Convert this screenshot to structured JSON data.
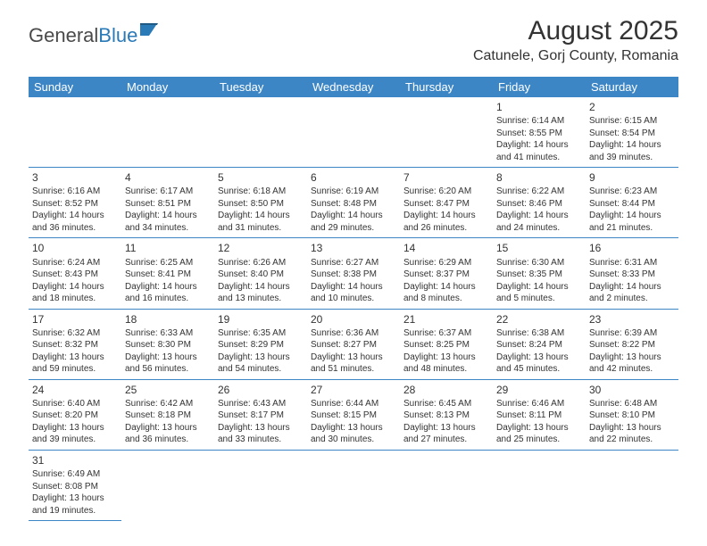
{
  "logo": {
    "part1": "General",
    "part2": "Blue"
  },
  "title": "August 2025",
  "location": "Catunele, Gorj County, Romania",
  "colors": {
    "header_bg": "#3d86c6",
    "header_fg": "#ffffff",
    "border": "#3d86c6",
    "text": "#333333",
    "logo_gray": "#4a4a4a",
    "logo_blue": "#2a7ab8",
    "page_bg": "#ffffff"
  },
  "dayHeaders": [
    "Sunday",
    "Monday",
    "Tuesday",
    "Wednesday",
    "Thursday",
    "Friday",
    "Saturday"
  ],
  "startOffset": 5,
  "daysInMonth": 31,
  "days": [
    {
      "n": 1,
      "sunrise": "6:14 AM",
      "sunset": "8:55 PM",
      "dl": "14 hours and 41 minutes."
    },
    {
      "n": 2,
      "sunrise": "6:15 AM",
      "sunset": "8:54 PM",
      "dl": "14 hours and 39 minutes."
    },
    {
      "n": 3,
      "sunrise": "6:16 AM",
      "sunset": "8:52 PM",
      "dl": "14 hours and 36 minutes."
    },
    {
      "n": 4,
      "sunrise": "6:17 AM",
      "sunset": "8:51 PM",
      "dl": "14 hours and 34 minutes."
    },
    {
      "n": 5,
      "sunrise": "6:18 AM",
      "sunset": "8:50 PM",
      "dl": "14 hours and 31 minutes."
    },
    {
      "n": 6,
      "sunrise": "6:19 AM",
      "sunset": "8:48 PM",
      "dl": "14 hours and 29 minutes."
    },
    {
      "n": 7,
      "sunrise": "6:20 AM",
      "sunset": "8:47 PM",
      "dl": "14 hours and 26 minutes."
    },
    {
      "n": 8,
      "sunrise": "6:22 AM",
      "sunset": "8:46 PM",
      "dl": "14 hours and 24 minutes."
    },
    {
      "n": 9,
      "sunrise": "6:23 AM",
      "sunset": "8:44 PM",
      "dl": "14 hours and 21 minutes."
    },
    {
      "n": 10,
      "sunrise": "6:24 AM",
      "sunset": "8:43 PM",
      "dl": "14 hours and 18 minutes."
    },
    {
      "n": 11,
      "sunrise": "6:25 AM",
      "sunset": "8:41 PM",
      "dl": "14 hours and 16 minutes."
    },
    {
      "n": 12,
      "sunrise": "6:26 AM",
      "sunset": "8:40 PM",
      "dl": "14 hours and 13 minutes."
    },
    {
      "n": 13,
      "sunrise": "6:27 AM",
      "sunset": "8:38 PM",
      "dl": "14 hours and 10 minutes."
    },
    {
      "n": 14,
      "sunrise": "6:29 AM",
      "sunset": "8:37 PM",
      "dl": "14 hours and 8 minutes."
    },
    {
      "n": 15,
      "sunrise": "6:30 AM",
      "sunset": "8:35 PM",
      "dl": "14 hours and 5 minutes."
    },
    {
      "n": 16,
      "sunrise": "6:31 AM",
      "sunset": "8:33 PM",
      "dl": "14 hours and 2 minutes."
    },
    {
      "n": 17,
      "sunrise": "6:32 AM",
      "sunset": "8:32 PM",
      "dl": "13 hours and 59 minutes."
    },
    {
      "n": 18,
      "sunrise": "6:33 AM",
      "sunset": "8:30 PM",
      "dl": "13 hours and 56 minutes."
    },
    {
      "n": 19,
      "sunrise": "6:35 AM",
      "sunset": "8:29 PM",
      "dl": "13 hours and 54 minutes."
    },
    {
      "n": 20,
      "sunrise": "6:36 AM",
      "sunset": "8:27 PM",
      "dl": "13 hours and 51 minutes."
    },
    {
      "n": 21,
      "sunrise": "6:37 AM",
      "sunset": "8:25 PM",
      "dl": "13 hours and 48 minutes."
    },
    {
      "n": 22,
      "sunrise": "6:38 AM",
      "sunset": "8:24 PM",
      "dl": "13 hours and 45 minutes."
    },
    {
      "n": 23,
      "sunrise": "6:39 AM",
      "sunset": "8:22 PM",
      "dl": "13 hours and 42 minutes."
    },
    {
      "n": 24,
      "sunrise": "6:40 AM",
      "sunset": "8:20 PM",
      "dl": "13 hours and 39 minutes."
    },
    {
      "n": 25,
      "sunrise": "6:42 AM",
      "sunset": "8:18 PM",
      "dl": "13 hours and 36 minutes."
    },
    {
      "n": 26,
      "sunrise": "6:43 AM",
      "sunset": "8:17 PM",
      "dl": "13 hours and 33 minutes."
    },
    {
      "n": 27,
      "sunrise": "6:44 AM",
      "sunset": "8:15 PM",
      "dl": "13 hours and 30 minutes."
    },
    {
      "n": 28,
      "sunrise": "6:45 AM",
      "sunset": "8:13 PM",
      "dl": "13 hours and 27 minutes."
    },
    {
      "n": 29,
      "sunrise": "6:46 AM",
      "sunset": "8:11 PM",
      "dl": "13 hours and 25 minutes."
    },
    {
      "n": 30,
      "sunrise": "6:48 AM",
      "sunset": "8:10 PM",
      "dl": "13 hours and 22 minutes."
    },
    {
      "n": 31,
      "sunrise": "6:49 AM",
      "sunset": "8:08 PM",
      "dl": "13 hours and 19 minutes."
    }
  ]
}
